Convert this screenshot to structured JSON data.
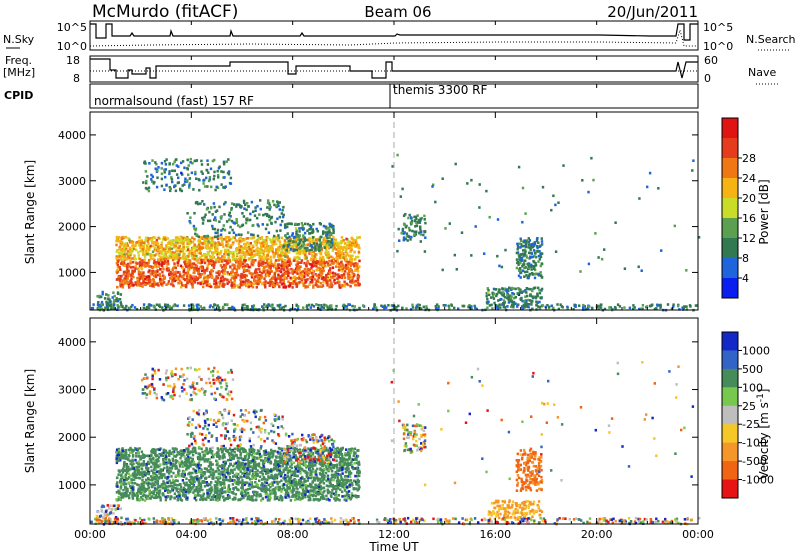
{
  "header": {
    "station": "McMurdo (fitACF)",
    "beam": "Beam 06",
    "date": "20/Jun/2011"
  },
  "panels": {
    "nsky": {
      "label": "N.Sky",
      "right_label": "N.Search",
      "left_ticks": [
        "10^5",
        "10^0"
      ],
      "right_ticks": [
        "10^5",
        "10^0"
      ]
    },
    "freq": {
      "label": "Freq.",
      "unit": "[MHz]",
      "right_label": "Nave",
      "left_ticks": [
        "18",
        "8"
      ],
      "right_ticks": [
        "60",
        "0"
      ]
    },
    "cpid": {
      "label": "CPID",
      "modes": [
        {
          "name": "normalsound (fast) 157 RF",
          "start_hour": 0
        },
        {
          "name": "themis 3300 RF",
          "start_hour": 12
        }
      ]
    }
  },
  "chart_data": [
    {
      "type": "heatmap",
      "name": "power",
      "ylabel": "Slant Range [km]",
      "ylim": [
        180,
        4500
      ],
      "yticks": [
        1000,
        2000,
        3000,
        4000
      ],
      "xlim": [
        0,
        24
      ],
      "colorbar": {
        "label": "Power [dB]",
        "ticks": [
          "4",
          "8",
          "12",
          "16",
          "20",
          "24",
          "28"
        ],
        "colors": [
          "#0a1ef0",
          "#1e64dc",
          "#327850",
          "#5aa050",
          "#c8dc28",
          "#f5b414",
          "#f07814",
          "#e63c1e",
          "#e11414"
        ]
      }
    },
    {
      "type": "heatmap",
      "name": "velocity",
      "ylabel": "Slant Range [km]",
      "ylim": [
        180,
        4500
      ],
      "yticks": [
        1000,
        2000,
        3000,
        4000
      ],
      "xlim": [
        0,
        24
      ],
      "colorbar": {
        "label": "Velocity [m s^-1]",
        "ticks": [
          "1000",
          "500",
          "100",
          "25",
          "-25",
          "-100",
          "-500",
          "-1000"
        ],
        "colors": [
          "#1428c8",
          "#3264c8",
          "#468c5a",
          "#78c850",
          "#bebebe",
          "#f5c828",
          "#f59628",
          "#f06414",
          "#e61414"
        ]
      }
    }
  ],
  "xaxis": {
    "label": "Time UT",
    "ticks": [
      "00:00",
      "04:00",
      "08:00",
      "12:00",
      "16:00",
      "20:00",
      "00:00"
    ],
    "tick_hours": [
      0,
      4,
      8,
      12,
      16,
      20,
      24
    ]
  }
}
